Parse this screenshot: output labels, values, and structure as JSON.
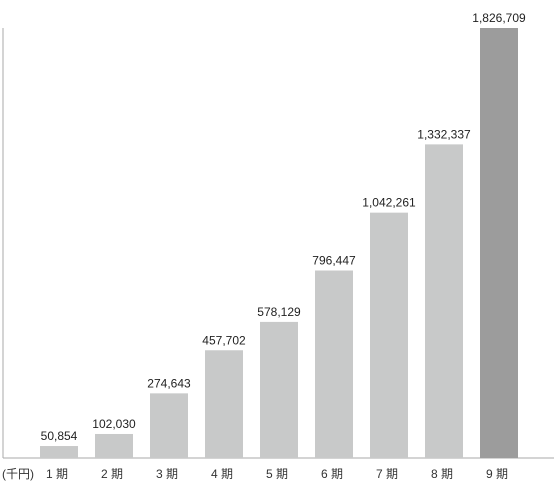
{
  "chart_data": {
    "type": "bar",
    "unit_label": "(千円)",
    "categories": [
      "1 期",
      "2 期",
      "3 期",
      "4 期",
      "5 期",
      "6 期",
      "7 期",
      "8 期",
      "9 期"
    ],
    "values": [
      50854,
      102030,
      274643,
      457702,
      578129,
      796447,
      1042261,
      1332337,
      1826709
    ],
    "value_labels": [
      "50,854",
      "102,030",
      "274,643",
      "457,702",
      "578,129",
      "796,447",
      "1,042,261",
      "1,332,337",
      "1,826,709"
    ],
    "colors": {
      "bar": "#c8c9c9",
      "highlight_bar": "#9c9c9c",
      "axis": "#999999"
    },
    "highlight_index": 8,
    "ylim": [
      0,
      1826709
    ],
    "grid": false,
    "legend": "none"
  }
}
